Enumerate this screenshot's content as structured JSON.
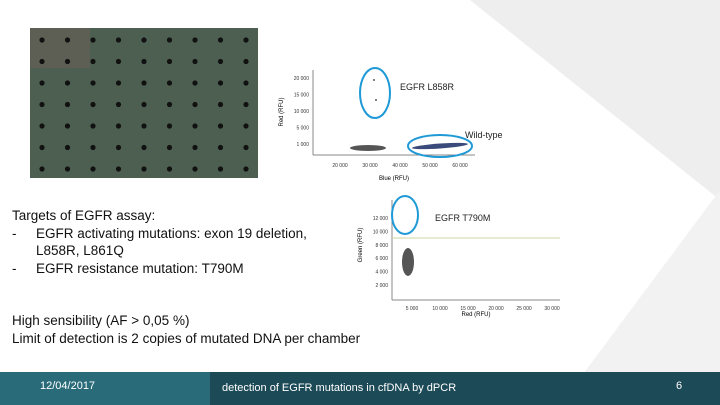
{
  "top_chart": {
    "annotations": [
      "EGFR L858R",
      "Wild-type"
    ],
    "y_axis_label": "Red (RFU)",
    "x_axis_label": "Blue (RFU)",
    "yticks": [
      "20 000",
      "15 000",
      "10 000",
      "5 000",
      "1 000"
    ],
    "xticks": [
      "20 000",
      "30 000",
      "40 000",
      "50 000",
      "60 000"
    ]
  },
  "bottom_chart": {
    "annotation": "EGFR T790M",
    "y_axis_label": "Green (RFU)",
    "x_axis_label": "Red (RFU)",
    "yticks": [
      "12 000",
      "10 000",
      "8 000",
      "6 000",
      "4 000",
      "2 000"
    ],
    "xticks": [
      "5 000",
      "10 000",
      "15 000",
      "20 000",
      "25 000",
      "30 000"
    ]
  },
  "body": {
    "heading": "Targets of EGFR assay:",
    "bullets": [
      "EGFR activating mutations: exon 19 deletion, L858R, L861Q",
      "EGFR resistance mutation: T790M"
    ]
  },
  "notes": [
    "High sensibility (AF > 0,05 %)",
    "Limit of detection is 2 copies of mutated DNA per chamber"
  ],
  "footer": {
    "date": "12/04/2017",
    "title": "detection of EGFR mutations in cfDNA by dPCR",
    "page": "6"
  }
}
